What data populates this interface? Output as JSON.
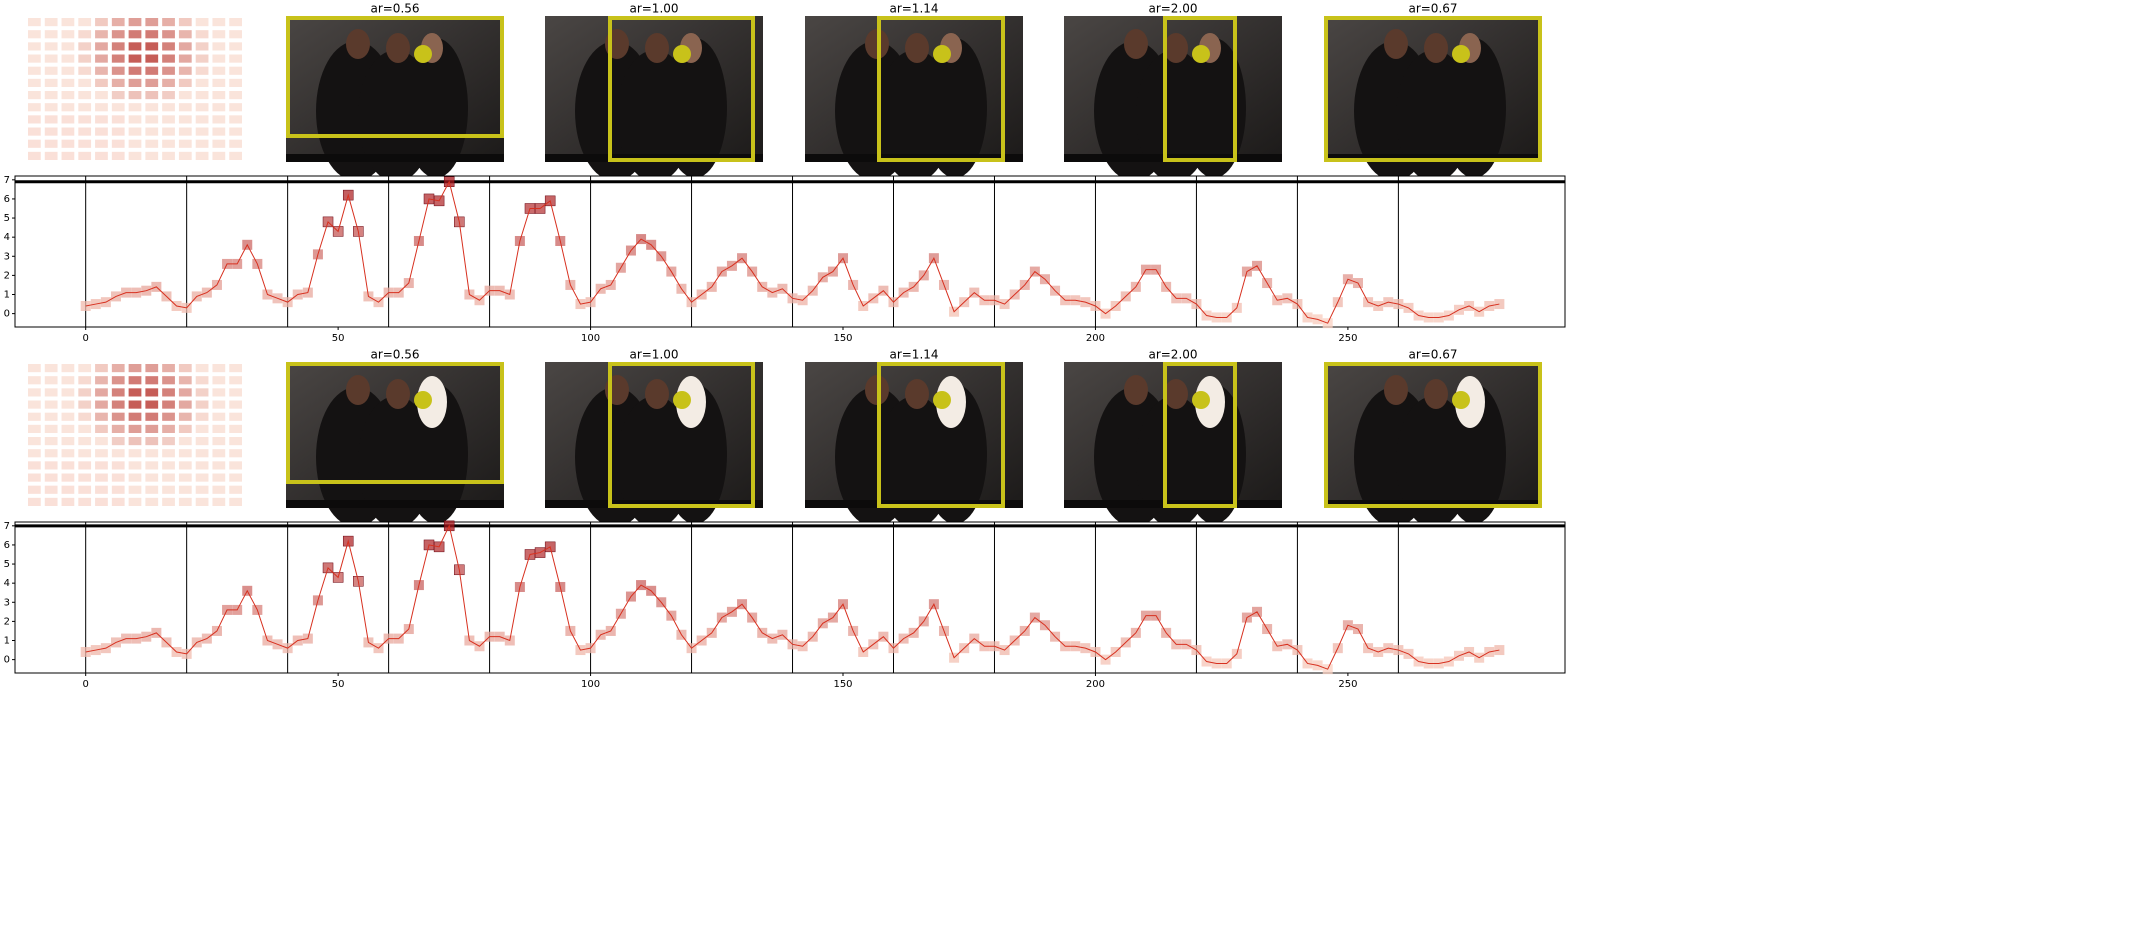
{
  "rows": [
    {
      "panel_titles": [
        "ar=0.56",
        "ar=1.00",
        "ar=1.14",
        "ar=2.00",
        "ar=0.67"
      ]
    },
    {
      "panel_titles": [
        "ar=0.56",
        "ar=1.00",
        "ar=1.14",
        "ar=2.00",
        "ar=0.67"
      ]
    }
  ],
  "chart_data": [
    {
      "type": "line",
      "x": [
        0,
        2,
        4,
        6,
        8,
        10,
        12,
        14,
        16,
        18,
        20,
        22,
        24,
        26,
        28,
        30,
        32,
        34,
        36,
        38,
        40,
        42,
        44,
        46,
        48,
        50,
        52,
        54,
        56,
        58,
        60,
        62,
        64,
        66,
        68,
        70,
        72,
        74,
        76,
        78,
        80,
        82,
        84,
        86,
        88,
        90,
        92,
        94,
        96,
        98,
        100,
        102,
        104,
        106,
        108,
        110,
        112,
        114,
        116,
        118,
        120,
        122,
        124,
        126,
        128,
        130,
        132,
        134,
        136,
        138,
        140,
        142,
        144,
        146,
        148,
        150,
        152,
        154,
        156,
        158,
        160,
        162,
        164,
        166,
        168,
        170,
        172,
        174,
        176,
        178,
        180,
        182,
        184,
        186,
        188,
        190,
        192,
        194,
        196,
        198,
        200,
        202,
        204,
        206,
        208,
        210,
        212,
        214,
        216,
        218,
        220,
        222,
        224,
        226,
        228,
        230,
        232,
        234,
        236,
        238,
        240,
        242,
        244,
        246,
        248,
        250,
        252,
        254,
        256,
        258,
        260,
        262,
        264,
        266,
        268,
        270,
        272,
        274,
        276,
        278,
        280
      ],
      "values": [
        0.4,
        0.5,
        0.6,
        0.9,
        1.1,
        1.1,
        1.2,
        1.4,
        0.9,
        0.4,
        0.3,
        0.9,
        1.1,
        1.5,
        2.6,
        2.6,
        3.6,
        2.6,
        1.0,
        0.8,
        0.6,
        1.0,
        1.1,
        3.1,
        4.8,
        4.3,
        6.2,
        4.3,
        0.9,
        0.6,
        1.1,
        1.1,
        1.6,
        3.8,
        6.0,
        5.9,
        6.9,
        4.8,
        1.0,
        0.7,
        1.2,
        1.2,
        1.0,
        3.8,
        5.5,
        5.5,
        5.9,
        3.8,
        1.5,
        0.5,
        0.6,
        1.3,
        1.5,
        2.4,
        3.3,
        3.9,
        3.6,
        3.0,
        2.2,
        1.3,
        0.6,
        1.0,
        1.4,
        2.2,
        2.5,
        2.9,
        2.2,
        1.4,
        1.1,
        1.3,
        0.8,
        0.7,
        1.2,
        1.9,
        2.2,
        2.9,
        1.5,
        0.4,
        0.8,
        1.2,
        0.6,
        1.1,
        1.4,
        2.0,
        2.9,
        1.5,
        0.1,
        0.6,
        1.1,
        0.7,
        0.7,
        0.5,
        1.0,
        1.5,
        2.2,
        1.8,
        1.2,
        0.7,
        0.7,
        0.6,
        0.4,
        0.0,
        0.4,
        0.9,
        1.4,
        2.3,
        2.3,
        1.4,
        0.8,
        0.8,
        0.5,
        -0.1,
        -0.2,
        -0.2,
        0.3,
        2.2,
        2.5,
        1.6,
        0.7,
        0.8,
        0.5,
        -0.2,
        -0.3,
        -0.5,
        0.6,
        1.8,
        1.6,
        0.6,
        0.4,
        0.6,
        0.5,
        0.3,
        -0.1,
        -0.2,
        -0.2,
        -0.1,
        0.2,
        0.4,
        0.1,
        0.4,
        0.5
      ],
      "color": "#d7301f",
      "marker_colormap": [
        "#fcd5c5",
        "#a50f15"
      ],
      "xlim": [
        -14,
        293
      ],
      "ylim": [
        -0.7,
        7.2
      ],
      "xticks": [
        0,
        50,
        100,
        150,
        200,
        250
      ],
      "yticks": [
        0,
        1,
        2,
        3,
        4,
        5,
        6,
        7
      ],
      "vlines": [
        0,
        20,
        40,
        60,
        80,
        100,
        120,
        140,
        160,
        180,
        200,
        220,
        240,
        260
      ],
      "hline": 6.9
    },
    {
      "type": "line",
      "x": [
        0,
        2,
        4,
        6,
        8,
        10,
        12,
        14,
        16,
        18,
        20,
        22,
        24,
        26,
        28,
        30,
        32,
        34,
        36,
        38,
        40,
        42,
        44,
        46,
        48,
        50,
        52,
        54,
        56,
        58,
        60,
        62,
        64,
        66,
        68,
        70,
        72,
        74,
        76,
        78,
        80,
        82,
        84,
        86,
        88,
        90,
        92,
        94,
        96,
        98,
        100,
        102,
        104,
        106,
        108,
        110,
        112,
        114,
        116,
        118,
        120,
        122,
        124,
        126,
        128,
        130,
        132,
        134,
        136,
        138,
        140,
        142,
        144,
        146,
        148,
        150,
        152,
        154,
        156,
        158,
        160,
        162,
        164,
        166,
        168,
        170,
        172,
        174,
        176,
        178,
        180,
        182,
        184,
        186,
        188,
        190,
        192,
        194,
        196,
        198,
        200,
        202,
        204,
        206,
        208,
        210,
        212,
        214,
        216,
        218,
        220,
        222,
        224,
        226,
        228,
        230,
        232,
        234,
        236,
        238,
        240,
        242,
        244,
        246,
        248,
        250,
        252,
        254,
        256,
        258,
        260,
        262,
        264,
        266,
        268,
        270,
        272,
        274,
        276,
        278,
        280
      ],
      "values": [
        0.4,
        0.5,
        0.6,
        0.9,
        1.1,
        1.1,
        1.2,
        1.4,
        0.9,
        0.4,
        0.3,
        0.9,
        1.1,
        1.5,
        2.6,
        2.6,
        3.6,
        2.6,
        1.0,
        0.8,
        0.6,
        1.0,
        1.1,
        3.1,
        4.8,
        4.3,
        6.2,
        4.1,
        0.9,
        0.6,
        1.1,
        1.1,
        1.6,
        3.9,
        6.0,
        5.9,
        7.0,
        4.7,
        1.0,
        0.7,
        1.2,
        1.2,
        1.0,
        3.8,
        5.5,
        5.6,
        5.9,
        3.8,
        1.5,
        0.5,
        0.6,
        1.3,
        1.5,
        2.4,
        3.3,
        3.9,
        3.6,
        3.0,
        2.3,
        1.3,
        0.6,
        1.0,
        1.4,
        2.2,
        2.5,
        2.9,
        2.2,
        1.4,
        1.1,
        1.3,
        0.8,
        0.7,
        1.2,
        1.9,
        2.2,
        2.9,
        1.5,
        0.4,
        0.8,
        1.2,
        0.6,
        1.1,
        1.4,
        2.0,
        2.9,
        1.5,
        0.1,
        0.6,
        1.1,
        0.7,
        0.7,
        0.5,
        1.0,
        1.5,
        2.2,
        1.8,
        1.2,
        0.7,
        0.7,
        0.6,
        0.4,
        0.0,
        0.4,
        0.9,
        1.4,
        2.3,
        2.3,
        1.4,
        0.8,
        0.8,
        0.5,
        -0.1,
        -0.2,
        -0.2,
        0.3,
        2.2,
        2.5,
        1.6,
        0.7,
        0.8,
        0.5,
        -0.2,
        -0.3,
        -0.5,
        0.6,
        1.8,
        1.6,
        0.6,
        0.4,
        0.6,
        0.5,
        0.3,
        -0.1,
        -0.2,
        -0.2,
        -0.1,
        0.2,
        0.4,
        0.1,
        0.4,
        0.5
      ],
      "color": "#d7301f",
      "marker_colormap": [
        "#fcd5c5",
        "#a50f15"
      ],
      "xlim": [
        -14,
        293
      ],
      "ylim": [
        -0.7,
        7.2
      ],
      "xticks": [
        0,
        50,
        100,
        150,
        200,
        250
      ],
      "yticks": [
        0,
        1,
        2,
        3,
        4,
        5,
        6,
        7
      ],
      "vlines": [
        0,
        20,
        40,
        60,
        80,
        100,
        120,
        140,
        160,
        180,
        200,
        220,
        240,
        260
      ],
      "hline": 7.0
    }
  ]
}
